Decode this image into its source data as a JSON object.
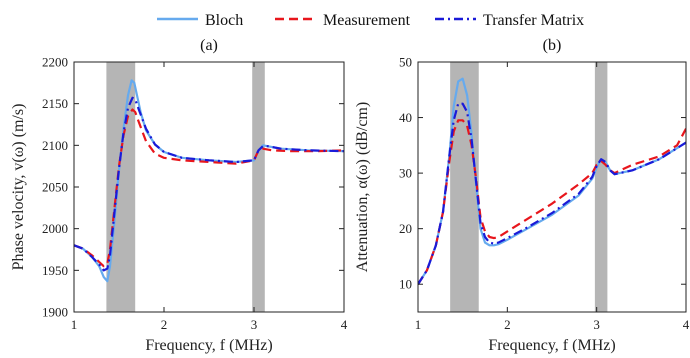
{
  "legend": [
    {
      "label": "Bloch",
      "color": "#66aaee",
      "dash": "solid"
    },
    {
      "label": "Measurement",
      "color": "#e8161c",
      "dash": "dashed"
    },
    {
      "label": "Transfer Matrix",
      "color": "#1a1ad8",
      "dash": "dashdot"
    }
  ],
  "chart_data": [
    {
      "type": "line",
      "title": "(a)",
      "xlabel": "Frequency, f (MHz)",
      "ylabel": "Phase velocity, v(ω) (m/s)",
      "xlim": [
        1,
        4
      ],
      "ylim": [
        1900,
        2200
      ],
      "xticks": [
        1,
        2,
        3,
        4
      ],
      "yticks": [
        1900,
        1950,
        2000,
        2050,
        2100,
        2150,
        2200
      ],
      "bands": [
        [
          1.36,
          1.68
        ],
        [
          2.98,
          3.12
        ]
      ],
      "band_color": "#b5b5b5",
      "series": [
        {
          "name": "Bloch",
          "color": "#66aaee",
          "dash": "solid",
          "x": [
            1.0,
            1.1,
            1.2,
            1.28,
            1.33,
            1.37,
            1.4,
            1.45,
            1.5,
            1.55,
            1.6,
            1.64,
            1.67,
            1.7,
            1.74,
            1.8,
            1.9,
            2.0,
            2.2,
            2.5,
            2.8,
            3.0,
            3.05,
            3.1,
            3.15,
            3.3,
            3.6,
            4.0
          ],
          "y": [
            1980,
            1976,
            1966,
            1955,
            1942,
            1937,
            1955,
            2010,
            2070,
            2120,
            2160,
            2178,
            2175,
            2160,
            2140,
            2118,
            2101,
            2092,
            2085,
            2082,
            2080,
            2082,
            2094,
            2100,
            2099,
            2096,
            2094,
            2093
          ]
        },
        {
          "name": "Measurement",
          "color": "#e8161c",
          "dash": "dashed",
          "x": [
            1.0,
            1.1,
            1.2,
            1.28,
            1.33,
            1.37,
            1.4,
            1.45,
            1.5,
            1.55,
            1.6,
            1.65,
            1.68,
            1.72,
            1.8,
            1.9,
            2.0,
            2.2,
            2.5,
            2.8,
            3.0,
            3.05,
            3.1,
            3.2,
            3.4,
            3.7,
            4.0
          ],
          "y": [
            1980,
            1976,
            1968,
            1960,
            1955,
            1958,
            1975,
            2025,
            2075,
            2112,
            2135,
            2143,
            2140,
            2128,
            2105,
            2090,
            2085,
            2082,
            2080,
            2078,
            2082,
            2094,
            2096,
            2094,
            2093,
            2093,
            2094
          ]
        },
        {
          "name": "Transfer Matrix",
          "color": "#1a1ad8",
          "dash": "dashdot",
          "x": [
            1.0,
            1.1,
            1.2,
            1.28,
            1.33,
            1.37,
            1.4,
            1.45,
            1.5,
            1.55,
            1.6,
            1.65,
            1.68,
            1.72,
            1.8,
            1.9,
            2.0,
            2.2,
            2.5,
            2.8,
            3.0,
            3.05,
            3.1,
            3.15,
            3.3,
            3.6,
            4.0
          ],
          "y": [
            1980,
            1976,
            1966,
            1957,
            1950,
            1952,
            1968,
            2020,
            2072,
            2115,
            2145,
            2157,
            2155,
            2143,
            2120,
            2101,
            2092,
            2085,
            2082,
            2080,
            2082,
            2094,
            2099,
            2099,
            2096,
            2094,
            2093
          ]
        }
      ]
    },
    {
      "type": "line",
      "title": "(b)",
      "xlabel": "Frequency, f (MHz)",
      "ylabel": "Attenuation, α(ω) (dB/cm)",
      "xlim": [
        1,
        4
      ],
      "ylim": [
        5,
        50
      ],
      "xticks": [
        1,
        2,
        3,
        4
      ],
      "yticks": [
        10,
        20,
        30,
        40,
        50
      ],
      "bands": [
        [
          1.36,
          1.68
        ],
        [
          2.98,
          3.12
        ]
      ],
      "band_color": "#b5b5b5",
      "series": [
        {
          "name": "Bloch",
          "color": "#66aaee",
          "dash": "solid",
          "x": [
            1.0,
            1.1,
            1.2,
            1.28,
            1.35,
            1.4,
            1.45,
            1.5,
            1.55,
            1.6,
            1.65,
            1.7,
            1.75,
            1.8,
            1.85,
            1.9,
            2.0,
            2.2,
            2.5,
            2.8,
            2.95,
            3.0,
            3.05,
            3.1,
            3.15,
            3.2,
            3.4,
            3.7,
            4.0
          ],
          "y": [
            10,
            12.5,
            17,
            23,
            33,
            42,
            46.5,
            47,
            44,
            37,
            28,
            20,
            17.5,
            17,
            17,
            17.2,
            18,
            19.8,
            22.5,
            26,
            29,
            31,
            32.5,
            32,
            30.5,
            29.8,
            30.5,
            32.5,
            35.5
          ]
        },
        {
          "name": "Measurement",
          "color": "#e8161c",
          "dash": "dashed",
          "x": [
            1.0,
            1.1,
            1.2,
            1.28,
            1.35,
            1.4,
            1.45,
            1.5,
            1.55,
            1.6,
            1.65,
            1.7,
            1.75,
            1.8,
            1.85,
            1.9,
            2.0,
            2.2,
            2.5,
            2.8,
            2.95,
            3.0,
            3.05,
            3.1,
            3.15,
            3.2,
            3.4,
            3.7,
            3.9,
            4.0
          ],
          "y": [
            10,
            12.5,
            17,
            23,
            32,
            37.5,
            39.5,
            39.5,
            38.5,
            35,
            29,
            22,
            19.5,
            18.5,
            18.3,
            18.5,
            19.5,
            21.5,
            24.5,
            28,
            30,
            31.5,
            32.2,
            31.5,
            30.5,
            30,
            31.5,
            33,
            35,
            38
          ]
        },
        {
          "name": "Transfer Matrix",
          "color": "#1a1ad8",
          "dash": "dashdot",
          "x": [
            1.0,
            1.1,
            1.2,
            1.28,
            1.35,
            1.4,
            1.45,
            1.5,
            1.55,
            1.6,
            1.65,
            1.7,
            1.75,
            1.8,
            1.85,
            1.9,
            2.0,
            2.2,
            2.5,
            2.8,
            2.95,
            3.0,
            3.05,
            3.1,
            3.15,
            3.2,
            3.4,
            3.7,
            4.0
          ],
          "y": [
            10,
            12.5,
            17,
            23,
            33,
            39.5,
            42.5,
            42.5,
            41,
            36,
            28.5,
            21,
            18.5,
            17.5,
            17.3,
            17.5,
            18.3,
            20,
            22.8,
            26.3,
            29.3,
            31.3,
            32.5,
            32,
            30.5,
            29.8,
            30.5,
            32.5,
            35.5
          ]
        }
      ]
    }
  ]
}
